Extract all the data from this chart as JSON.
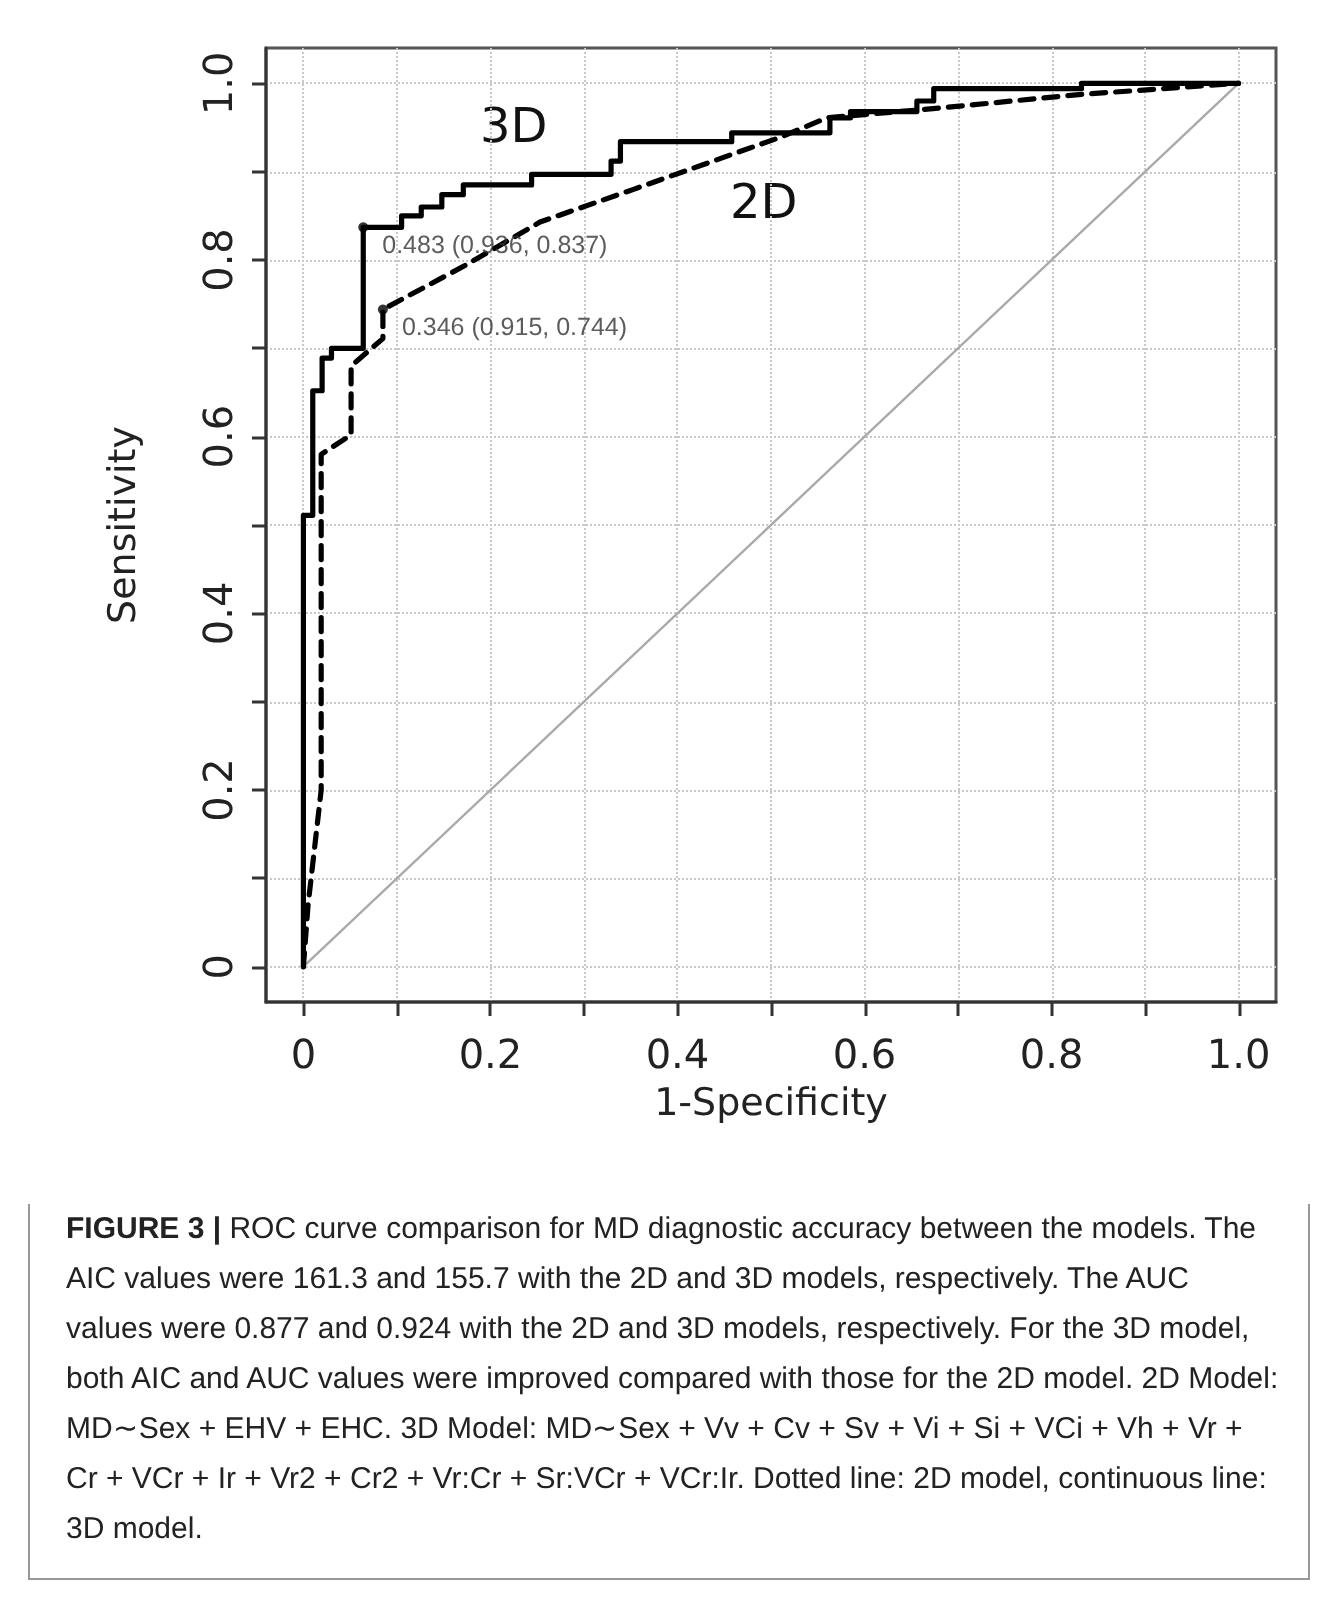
{
  "chart_data": {
    "type": "step",
    "xlabel": "1-Specificity",
    "ylabel": "Sensitivity",
    "xlim": [
      -0.04,
      1.04
    ],
    "ylim": [
      -0.04,
      1.04
    ],
    "xticks": [
      0,
      {
        "value": 0.1,
        "label": null
      },
      0.2,
      {
        "value": 0.3,
        "label": null
      },
      0.4,
      {
        "value": 0.5,
        "label": null
      },
      0.6,
      {
        "value": 0.7,
        "label": null
      },
      0.8,
      {
        "value": 0.9,
        "label": null
      },
      {
        "value": 1,
        "label": "1.0"
      }
    ],
    "yticks": [
      0,
      {
        "value": 0.1,
        "label": null
      },
      0.2,
      {
        "value": 0.3,
        "label": null
      },
      0.4,
      {
        "value": 0.5,
        "label": null
      },
      0.6,
      {
        "value": 0.7,
        "label": null
      },
      0.8,
      {
        "value": 0.9,
        "label": null
      },
      {
        "value": 1,
        "label": "1.0"
      }
    ],
    "grid": true,
    "marker": "none",
    "series": [
      {
        "name": "3D",
        "color": "#000000",
        "line_style": "solid",
        "x": [
          0,
          0,
          0.01,
          0.02,
          0.03,
          0.064,
          0.105,
          0.126,
          0.148,
          0.171,
          0.244,
          0.329,
          0.339,
          0.458,
          0.563,
          0.585,
          0.656,
          0.674,
          0.832,
          1.0
        ],
        "values": [
          0,
          0.511,
          0.652,
          0.689,
          0.7,
          0.837,
          0.85,
          0.86,
          0.874,
          0.885,
          0.897,
          0.912,
          0.934,
          0.944,
          0.961,
          0.968,
          0.98,
          0.994,
          1.0,
          1.0
        ]
      },
      {
        "name": "2D",
        "type": "line",
        "color": "#000000",
        "line_style": "dashed",
        "x": [
          0,
          0.005,
          0.019,
          0.019,
          0.051,
          0.051,
          0.085,
          0.085,
          0.175,
          0.253,
          0.353,
          0.51,
          0.56,
          0.68,
          0.826,
          1.0
        ],
        "values": [
          0,
          0.07,
          0.2,
          0.58,
          0.602,
          0.68,
          0.711,
          0.744,
          0.795,
          0.843,
          0.88,
          0.939,
          0.961,
          0.972,
          0.987,
          1.0
        ]
      },
      {
        "type": "line",
        "color": "#aaaaaa",
        "line_style": "solid",
        "x": [
          0,
          1
        ],
        "values": [
          0,
          1
        ]
      }
    ],
    "annotations": [
      {
        "text": "0.483 (0.936, 0.837)",
        "x": 0.064,
        "y": 0.837
      },
      {
        "text": "0.346 (0.915, 0.744)",
        "x": 0.085,
        "y": 0.744
      },
      "FIGURE 3 |",
      "ROC curve comparison for MD diagnostic accuracy between the models. The AIC values were 161.3 and 155.7 with the 2D and 3D models, respectively. The AUC values were 0.877 and 0.924 with the 2D and 3D models, respectively. For the 3D model, both AIC and AUC values were improved compared with those for the 2D model. 2D Model: MD∼Sex + EHV + EHC. 3D Model: MD∼Sex + Vv + Cv + Sv + Vi + Si + VCi + Vh + Vr + Cr + VCr + Ir + Vr2 + Cr2 + Vr:Cr + Sr:VCr + VCr:Ir. Dotted line: 2D model, continuous line: 3D model."
    ]
  }
}
